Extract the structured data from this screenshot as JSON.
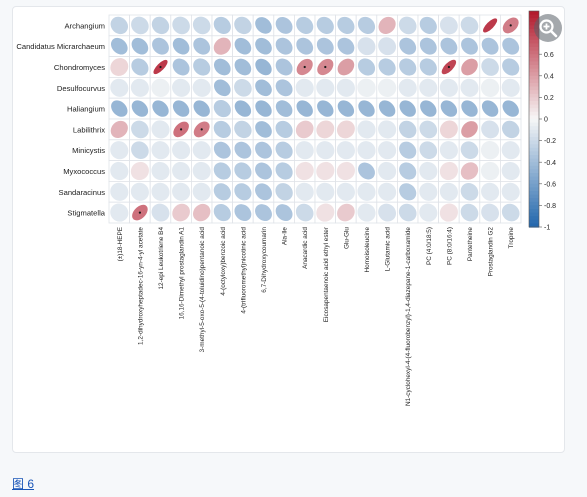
{
  "figure_link_label": "图 6",
  "zoom_icon": "zoom-in-icon",
  "colors": {
    "positive": "#b2182b",
    "neutral": "#f7f7f7",
    "negative": "#2166ac",
    "cell_border": "#dfe3e8",
    "significance_marker": "#1a1a1a"
  },
  "chart_data": {
    "type": "heatmap",
    "title": "",
    "xlabel": "",
    "ylabel": "",
    "glyph": "ellipse",
    "legend_position": "right",
    "colorbar": {
      "min": -1,
      "max": 1,
      "ticks": [
        0.6,
        0.4,
        0.2,
        0,
        -0.2,
        -0.4,
        -0.6,
        -0.8,
        -1
      ]
    },
    "rows": [
      "Archangium",
      "Candidatus Micrarchaeum",
      "Chondromyces",
      "Desulfocurvus",
      "Haliangium",
      "Labilithrix",
      "Minicystis",
      "Myxococcus",
      "Sandaracinus",
      "Stigmatella"
    ],
    "columns": [
      "(±)18-HEPE",
      "1,2-dihydroxyheptadec-16-yn-4-yl acetate",
      "12-epi Leukotriene B4",
      "16,16-Dimethyl prostaglandin A1",
      "3-methyl-5-oxo-5-(4-toluidino)pentanoic acid",
      "4-(octyloxy)benzoic acid",
      "4-(trifluoromethyl)nicotinic acid",
      "6,7-Dihydroxycoumarin",
      "Ala-Ile",
      "Anacardic acid",
      "Eicosapentaenoic acid ethyl ester",
      "Glu-Glu",
      "Homoisoleucine",
      "L-Glutamic acid",
      "N1-cyclohexyl-4-(4-fluorobenzyl)-1,4-diazepane-1-carboxamide",
      "PC (4:0/18:5)",
      "PC (8:0/16:4)",
      "Pantetheine",
      "Prostaglandin G2",
      "Tropine"
    ],
    "values": [
      [
        -0.25,
        -0.2,
        -0.25,
        -0.2,
        -0.2,
        -0.3,
        -0.25,
        -0.4,
        -0.35,
        -0.3,
        -0.3,
        -0.3,
        -0.3,
        0.3,
        -0.2,
        -0.3,
        -0.15,
        -0.2,
        0.85,
        0.55
      ],
      [
        -0.4,
        -0.4,
        -0.35,
        -0.4,
        -0.35,
        0.3,
        -0.4,
        -0.4,
        -0.35,
        -0.35,
        -0.35,
        -0.35,
        -0.15,
        -0.15,
        -0.35,
        -0.35,
        -0.35,
        -0.35,
        -0.35,
        -0.35
      ],
      [
        0.15,
        -0.3,
        0.85,
        -0.35,
        -0.3,
        -0.4,
        -0.4,
        -0.45,
        -0.35,
        0.5,
        0.5,
        0.4,
        -0.3,
        -0.3,
        -0.3,
        -0.3,
        0.8,
        0.4,
        -0.2,
        -0.3
      ],
      [
        -0.1,
        -0.1,
        -0.05,
        -0.1,
        -0.1,
        -0.4,
        -0.2,
        -0.4,
        -0.35,
        -0.1,
        -0.1,
        -0.1,
        -0.05,
        -0.05,
        -0.1,
        -0.1,
        -0.1,
        -0.1,
        -0.05,
        -0.1
      ],
      [
        -0.45,
        -0.45,
        -0.45,
        -0.45,
        -0.45,
        -0.3,
        -0.45,
        -0.45,
        -0.4,
        -0.45,
        -0.45,
        -0.45,
        -0.45,
        -0.45,
        -0.45,
        -0.45,
        -0.45,
        -0.45,
        -0.45,
        -0.45
      ],
      [
        0.3,
        -0.2,
        -0.1,
        0.6,
        0.55,
        -0.3,
        -0.25,
        -0.4,
        -0.3,
        0.2,
        0.15,
        0.15,
        -0.1,
        -0.1,
        -0.25,
        -0.2,
        0.15,
        0.4,
        -0.15,
        -0.25
      ],
      [
        -0.1,
        -0.2,
        -0.1,
        -0.1,
        -0.1,
        -0.35,
        -0.35,
        -0.35,
        -0.3,
        -0.1,
        -0.1,
        -0.1,
        -0.1,
        -0.1,
        -0.3,
        -0.2,
        -0.1,
        -0.2,
        -0.05,
        -0.1
      ],
      [
        -0.1,
        0.1,
        -0.1,
        -0.1,
        -0.1,
        -0.3,
        -0.3,
        -0.35,
        -0.3,
        0.1,
        0.1,
        0.1,
        -0.35,
        -0.1,
        -0.3,
        -0.1,
        0.1,
        0.25,
        -0.05,
        -0.1
      ],
      [
        -0.1,
        -0.1,
        -0.1,
        -0.1,
        -0.1,
        -0.3,
        -0.3,
        -0.35,
        -0.25,
        -0.1,
        -0.1,
        -0.1,
        -0.1,
        -0.1,
        -0.3,
        -0.1,
        -0.1,
        -0.2,
        -0.1,
        -0.1
      ],
      [
        -0.1,
        0.6,
        -0.15,
        0.2,
        0.25,
        -0.3,
        -0.35,
        -0.35,
        -0.35,
        -0.2,
        0.1,
        0.2,
        -0.1,
        -0.15,
        -0.2,
        -0.1,
        0.1,
        -0.2,
        -0.15,
        -0.2
      ]
    ],
    "significant": [
      [
        0,
        19
      ],
      [
        2,
        2
      ],
      [
        2,
        9
      ],
      [
        2,
        10
      ],
      [
        2,
        16
      ],
      [
        5,
        3
      ],
      [
        5,
        4
      ],
      [
        9,
        1
      ]
    ]
  }
}
